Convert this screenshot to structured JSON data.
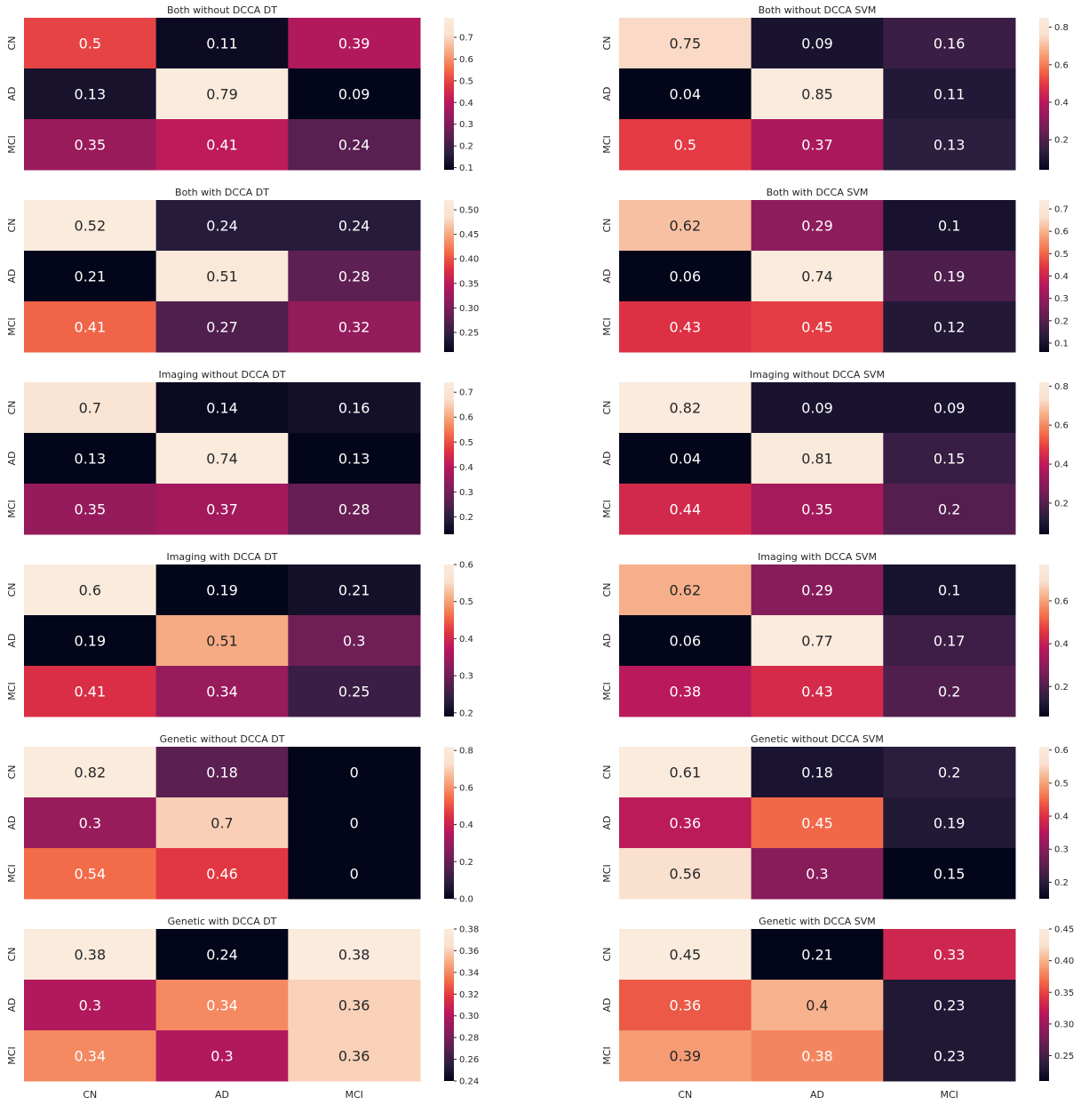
{
  "colormap": [
    "#03051a",
    "#2b1e3f",
    "#5c1f52",
    "#8b1c5c",
    "#b8185c",
    "#e13342",
    "#f3704a",
    "#f6aa82",
    "#fae0cf",
    "#faebdd"
  ],
  "annotation_color_dark": "#ffffff",
  "annotation_color_light": "#262626",
  "chart_data": [
    {
      "type": "heatmap",
      "title": "Both without DCCA DT",
      "rows": [
        "CN",
        "AD",
        "MCI"
      ],
      "cols": [
        "CN",
        "AD",
        "MCI"
      ],
      "values": [
        [
          0.5,
          0.11,
          0.39
        ],
        [
          0.13,
          0.79,
          0.09
        ],
        [
          0.35,
          0.41,
          0.24
        ]
      ],
      "vmin": 0.09,
      "vmax": 0.79,
      "colorbar_ticks": [
        "0.1",
        "0.2",
        "0.3",
        "0.4",
        "0.5",
        "0.6",
        "0.7"
      ]
    },
    {
      "type": "heatmap",
      "title": "Both without DCCA SVM",
      "rows": [
        "CN",
        "AD",
        "MCI"
      ],
      "cols": [
        "CN",
        "AD",
        "MCI"
      ],
      "values": [
        [
          0.75,
          0.09,
          0.16
        ],
        [
          0.04,
          0.85,
          0.11
        ],
        [
          0.5,
          0.37,
          0.13
        ]
      ],
      "vmin": 0.04,
      "vmax": 0.85,
      "colorbar_ticks": [
        "0.2",
        "0.4",
        "0.6",
        "0.8"
      ]
    },
    {
      "type": "heatmap",
      "title": "Both with DCCA DT",
      "rows": [
        "CN",
        "AD",
        "MCI"
      ],
      "cols": [
        "CN",
        "AD",
        "MCI"
      ],
      "values": [
        [
          0.52,
          0.24,
          0.24
        ],
        [
          0.21,
          0.51,
          0.28
        ],
        [
          0.41,
          0.27,
          0.32
        ]
      ],
      "vmin": 0.21,
      "vmax": 0.52,
      "colorbar_ticks": [
        "0.25",
        "0.30",
        "0.35",
        "0.40",
        "0.45",
        "0.50"
      ]
    },
    {
      "type": "heatmap",
      "title": "Both with DCCA SVM",
      "rows": [
        "CN",
        "AD",
        "MCI"
      ],
      "cols": [
        "CN",
        "AD",
        "MCI"
      ],
      "values": [
        [
          0.62,
          0.29,
          0.1
        ],
        [
          0.06,
          0.74,
          0.19
        ],
        [
          0.43,
          0.45,
          0.12
        ]
      ],
      "vmin": 0.06,
      "vmax": 0.74,
      "colorbar_ticks": [
        "0.1",
        "0.2",
        "0.3",
        "0.4",
        "0.5",
        "0.6",
        "0.7"
      ]
    },
    {
      "type": "heatmap",
      "title": "Imaging without DCCA DT",
      "rows": [
        "CN",
        "AD",
        "MCI"
      ],
      "cols": [
        "CN",
        "AD",
        "MCI"
      ],
      "values": [
        [
          0.7,
          0.14,
          0.16
        ],
        [
          0.13,
          0.74,
          0.13
        ],
        [
          0.35,
          0.37,
          0.28
        ]
      ],
      "vmin": 0.13,
      "vmax": 0.74,
      "colorbar_ticks": [
        "0.2",
        "0.3",
        "0.4",
        "0.5",
        "0.6",
        "0.7"
      ]
    },
    {
      "type": "heatmap",
      "title": "Imaging without DCCA SVM",
      "rows": [
        "CN",
        "AD",
        "MCI"
      ],
      "cols": [
        "CN",
        "AD",
        "MCI"
      ],
      "values": [
        [
          0.82,
          0.09,
          0.09
        ],
        [
          0.04,
          0.81,
          0.15
        ],
        [
          0.44,
          0.35,
          0.2
        ]
      ],
      "vmin": 0.04,
      "vmax": 0.82,
      "colorbar_ticks": [
        "0.2",
        "0.4",
        "0.6",
        "0.8"
      ]
    },
    {
      "type": "heatmap",
      "title": "Imaging with DCCA DT",
      "rows": [
        "CN",
        "AD",
        "MCI"
      ],
      "cols": [
        "CN",
        "AD",
        "MCI"
      ],
      "values": [
        [
          0.6,
          0.19,
          0.21
        ],
        [
          0.19,
          0.51,
          0.3
        ],
        [
          0.41,
          0.34,
          0.25
        ]
      ],
      "vmin": 0.19,
      "vmax": 0.6,
      "colorbar_ticks": [
        "0.2",
        "0.3",
        "0.4",
        "0.5",
        "0.6"
      ]
    },
    {
      "type": "heatmap",
      "title": "Imaging with DCCA SVM",
      "rows": [
        "CN",
        "AD",
        "MCI"
      ],
      "cols": [
        "CN",
        "AD",
        "MCI"
      ],
      "values": [
        [
          0.62,
          0.29,
          0.1
        ],
        [
          0.06,
          0.77,
          0.17
        ],
        [
          0.38,
          0.43,
          0.2
        ]
      ],
      "vmin": 0.06,
      "vmax": 0.77,
      "colorbar_ticks": [
        "0.2",
        "0.4",
        "0.6"
      ]
    },
    {
      "type": "heatmap",
      "title": "Genetic without DCCA DT",
      "rows": [
        "CN",
        "AD",
        "MCI"
      ],
      "cols": [
        "CN",
        "AD",
        "MCI"
      ],
      "values": [
        [
          0.82,
          0.18,
          0
        ],
        [
          0.3,
          0.7,
          0
        ],
        [
          0.54,
          0.46,
          0
        ]
      ],
      "vmin": 0,
      "vmax": 0.82,
      "colorbar_ticks": [
        "0.0",
        "0.2",
        "0.4",
        "0.6",
        "0.8"
      ]
    },
    {
      "type": "heatmap",
      "title": "Genetic without DCCA SVM",
      "rows": [
        "CN",
        "AD",
        "MCI"
      ],
      "cols": [
        "CN",
        "AD",
        "MCI"
      ],
      "values": [
        [
          0.61,
          0.18,
          0.2
        ],
        [
          0.36,
          0.45,
          0.19
        ],
        [
          0.56,
          0.3,
          0.15
        ]
      ],
      "vmin": 0.15,
      "vmax": 0.61,
      "colorbar_ticks": [
        "0.2",
        "0.3",
        "0.4",
        "0.5",
        "0.6"
      ]
    },
    {
      "type": "heatmap",
      "title": "Genetic with DCCA DT",
      "rows": [
        "CN",
        "AD",
        "MCI"
      ],
      "cols": [
        "CN",
        "AD",
        "MCI"
      ],
      "values": [
        [
          0.38,
          0.24,
          0.38
        ],
        [
          0.3,
          0.34,
          0.36
        ],
        [
          0.34,
          0.3,
          0.36
        ]
      ],
      "vmin": 0.24,
      "vmax": 0.38,
      "colorbar_ticks": [
        "0.24",
        "0.26",
        "0.28",
        "0.30",
        "0.32",
        "0.34",
        "0.36",
        "0.38"
      ]
    },
    {
      "type": "heatmap",
      "title": "Genetic with DCCA SVM",
      "rows": [
        "CN",
        "AD",
        "MCI"
      ],
      "cols": [
        "CN",
        "AD",
        "MCI"
      ],
      "values": [
        [
          0.45,
          0.21,
          0.33
        ],
        [
          0.36,
          0.4,
          0.23
        ],
        [
          0.39,
          0.38,
          0.23
        ]
      ],
      "vmin": 0.21,
      "vmax": 0.45,
      "colorbar_ticks": [
        "0.25",
        "0.30",
        "0.35",
        "0.40",
        "0.45"
      ]
    }
  ]
}
